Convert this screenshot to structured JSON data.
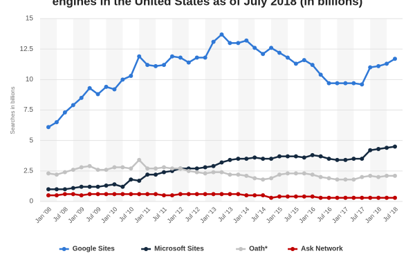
{
  "chart_data": {
    "type": "line",
    "title": "engines in the United States as of July 2018 (in billions)",
    "y_label": "Searches in billions",
    "categories": [
      "Jan '08",
      null,
      "Jul '08",
      null,
      "Jan '09",
      null,
      "Jul '09",
      null,
      "Jan '10",
      null,
      "Jul '10",
      null,
      "Jan '11",
      null,
      "Jul '11",
      null,
      "Jan '12",
      null,
      "Jul '12",
      null,
      "Jan '13",
      null,
      "Jul '13",
      null,
      "Jan '14",
      null,
      "Jul '14",
      null,
      "Jan '15",
      null,
      "Jul '15",
      null,
      "Jan '16",
      null,
      "Jul '16",
      null,
      "Jan '17",
      null,
      "Jul '17",
      null,
      "Jan '18",
      null,
      "Jul '18"
    ],
    "series": [
      {
        "name": "Google Sites",
        "color": "#2f78d6",
        "values": [
          6.1,
          6.5,
          7.3,
          7.9,
          8.5,
          9.3,
          8.8,
          9.4,
          9.2,
          10.0,
          10.3,
          11.9,
          11.2,
          11.1,
          11.2,
          11.9,
          11.8,
          11.4,
          11.8,
          11.8,
          13.1,
          13.7,
          13.0,
          13.0,
          13.2,
          12.6,
          12.1,
          12.6,
          12.2,
          11.8,
          11.3,
          11.6,
          11.2,
          10.4,
          9.7,
          9.7,
          9.7,
          9.7,
          9.6,
          11.0,
          11.1,
          11.3,
          11.7
        ]
      },
      {
        "name": "Microsoft Sites",
        "color": "#14293f",
        "values": [
          1.0,
          1.0,
          1.0,
          1.1,
          1.2,
          1.2,
          1.2,
          1.3,
          1.4,
          1.2,
          1.8,
          1.7,
          2.2,
          2.2,
          2.4,
          2.5,
          2.7,
          2.7,
          2.7,
          2.8,
          2.9,
          3.2,
          3.4,
          3.5,
          3.5,
          3.6,
          3.5,
          3.5,
          3.7,
          3.7,
          3.7,
          3.6,
          3.8,
          3.7,
          3.5,
          3.4,
          3.4,
          3.5,
          3.5,
          4.2,
          4.3,
          4.4,
          4.5
        ]
      },
      {
        "name": "Oath*",
        "color": "#c2c2c2",
        "values": [
          2.3,
          2.2,
          2.4,
          2.6,
          2.8,
          2.9,
          2.6,
          2.6,
          2.8,
          2.8,
          2.7,
          3.4,
          2.7,
          2.7,
          2.8,
          2.7,
          2.7,
          2.5,
          2.4,
          2.3,
          2.4,
          2.4,
          2.2,
          2.2,
          2.1,
          1.9,
          1.8,
          1.9,
          2.2,
          2.3,
          2.3,
          2.3,
          2.2,
          2.0,
          1.9,
          1.8,
          1.8,
          1.8,
          2.0,
          2.1,
          2.0,
          2.1,
          2.1
        ]
      },
      {
        "name": "Ask Network",
        "color": "#c00000",
        "values": [
          0.5,
          0.5,
          0.6,
          0.6,
          0.5,
          0.6,
          0.6,
          0.6,
          0.6,
          0.6,
          0.6,
          0.6,
          0.6,
          0.6,
          0.5,
          0.5,
          0.6,
          0.6,
          0.6,
          0.6,
          0.6,
          0.6,
          0.6,
          0.6,
          0.5,
          0.5,
          0.5,
          0.3,
          0.4,
          0.4,
          0.4,
          0.4,
          0.4,
          0.3,
          0.3,
          0.3,
          0.3,
          0.3,
          0.3,
          0.3,
          0.3,
          0.3,
          0.3
        ]
      }
    ],
    "ylim": [
      0,
      15
    ],
    "yticks": [
      0,
      2.5,
      5,
      7.5,
      10,
      12.5,
      15
    ],
    "grid": true,
    "legend": "bottom"
  }
}
